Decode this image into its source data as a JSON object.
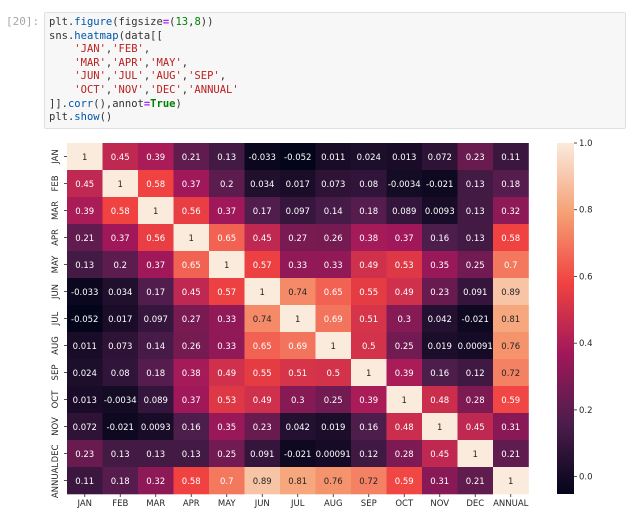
{
  "prompt_label": "[20]:",
  "code_lines": [
    [
      {
        "t": "plt.",
        "c": ""
      },
      {
        "t": "figure",
        "c": "fn"
      },
      {
        "t": "(figsize",
        "c": ""
      },
      {
        "t": "=",
        "c": "op"
      },
      {
        "t": "(",
        "c": ""
      },
      {
        "t": "13",
        "c": "num"
      },
      {
        "t": ",",
        "c": ""
      },
      {
        "t": "8",
        "c": "num"
      },
      {
        "t": "))",
        "c": ""
      }
    ],
    [
      {
        "t": "sns.",
        "c": ""
      },
      {
        "t": "heatmap",
        "c": "fn"
      },
      {
        "t": "(data[[",
        "c": ""
      }
    ],
    [
      {
        "t": "    ",
        "c": ""
      },
      {
        "t": "'JAN'",
        "c": "str"
      },
      {
        "t": ",",
        "c": ""
      },
      {
        "t": "'FEB'",
        "c": "str"
      },
      {
        "t": ",",
        "c": ""
      }
    ],
    [
      {
        "t": "    ",
        "c": ""
      },
      {
        "t": "'MAR'",
        "c": "str"
      },
      {
        "t": ",",
        "c": ""
      },
      {
        "t": "'APR'",
        "c": "str"
      },
      {
        "t": ",",
        "c": ""
      },
      {
        "t": "'MAY'",
        "c": "str"
      },
      {
        "t": ",",
        "c": ""
      }
    ],
    [
      {
        "t": "    ",
        "c": ""
      },
      {
        "t": "'JUN'",
        "c": "str"
      },
      {
        "t": ",",
        "c": ""
      },
      {
        "t": "'JUL'",
        "c": "str"
      },
      {
        "t": ",",
        "c": ""
      },
      {
        "t": "'AUG'",
        "c": "str"
      },
      {
        "t": ",",
        "c": ""
      },
      {
        "t": "'SEP'",
        "c": "str"
      },
      {
        "t": ",",
        "c": ""
      }
    ],
    [
      {
        "t": "    ",
        "c": ""
      },
      {
        "t": "'OCT'",
        "c": "str"
      },
      {
        "t": ",",
        "c": ""
      },
      {
        "t": "'NOV'",
        "c": "str"
      },
      {
        "t": ",",
        "c": ""
      },
      {
        "t": "'DEC'",
        "c": "str"
      },
      {
        "t": ",",
        "c": ""
      },
      {
        "t": "'ANNUAL'",
        "c": "str"
      }
    ],
    [
      {
        "t": "]].",
        "c": ""
      },
      {
        "t": "corr",
        "c": "fn"
      },
      {
        "t": "(),annot",
        "c": ""
      },
      {
        "t": "=",
        "c": "op"
      },
      {
        "t": "True",
        "c": "kw"
      },
      {
        "t": ")",
        "c": ""
      }
    ],
    [
      {
        "t": "plt.",
        "c": ""
      },
      {
        "t": "show",
        "c": "fn"
      },
      {
        "t": "()",
        "c": ""
      }
    ]
  ],
  "chart_data": {
    "type": "heatmap",
    "labels": [
      "JAN",
      "FEB",
      "MAR",
      "APR",
      "MAY",
      "JUN",
      "JUL",
      "AUG",
      "SEP",
      "OCT",
      "NOV",
      "DEC",
      "ANNUAL"
    ],
    "values": [
      [
        1,
        0.45,
        0.39,
        0.21,
        0.13,
        -0.033,
        -0.052,
        0.011,
        0.024,
        0.013,
        0.072,
        0.23,
        0.11
      ],
      [
        0.45,
        1,
        0.58,
        0.37,
        0.2,
        0.034,
        0.017,
        0.073,
        0.08,
        -0.0034,
        -0.021,
        0.13,
        0.18
      ],
      [
        0.39,
        0.58,
        1,
        0.56,
        0.37,
        0.17,
        0.097,
        0.14,
        0.18,
        0.089,
        0.0093,
        0.13,
        0.32
      ],
      [
        0.21,
        0.37,
        0.56,
        1,
        0.65,
        0.45,
        0.27,
        0.26,
        0.38,
        0.37,
        0.16,
        0.13,
        0.58
      ],
      [
        0.13,
        0.2,
        0.37,
        0.65,
        1,
        0.57,
        0.33,
        0.33,
        0.49,
        0.53,
        0.35,
        0.25,
        0.7
      ],
      [
        -0.033,
        0.034,
        0.17,
        0.45,
        0.57,
        1,
        0.74,
        0.65,
        0.55,
        0.49,
        0.23,
        0.091,
        0.89
      ],
      [
        -0.052,
        0.017,
        0.097,
        0.27,
        0.33,
        0.74,
        1,
        0.69,
        0.51,
        0.3,
        0.042,
        -0.021,
        0.81
      ],
      [
        0.011,
        0.073,
        0.14,
        0.26,
        0.33,
        0.65,
        0.69,
        1,
        0.5,
        0.25,
        0.019,
        0.00091,
        0.76
      ],
      [
        0.024,
        0.08,
        0.18,
        0.38,
        0.49,
        0.55,
        0.51,
        0.5,
        1,
        0.39,
        0.16,
        0.12,
        0.72
      ],
      [
        0.013,
        -0.0034,
        0.089,
        0.37,
        0.53,
        0.49,
        0.3,
        0.25,
        0.39,
        1,
        0.48,
        0.28,
        0.59
      ],
      [
        0.072,
        -0.021,
        0.0093,
        0.16,
        0.35,
        0.23,
        0.042,
        0.019,
        0.16,
        0.48,
        1,
        0.45,
        0.31
      ],
      [
        0.23,
        0.13,
        0.13,
        0.13,
        0.25,
        0.091,
        -0.021,
        0.00091,
        0.12,
        0.28,
        0.45,
        1,
        0.21
      ],
      [
        0.11,
        0.18,
        0.32,
        0.58,
        0.7,
        0.89,
        0.81,
        0.76,
        0.72,
        0.59,
        0.31,
        0.21,
        1
      ]
    ],
    "vmin": -0.052,
    "vmax": 1,
    "colormap": "rocket",
    "colorbar_ticks": [
      "0.0",
      "0.2",
      "0.4",
      "0.6",
      "0.8",
      "1.0"
    ],
    "annotated": true
  }
}
